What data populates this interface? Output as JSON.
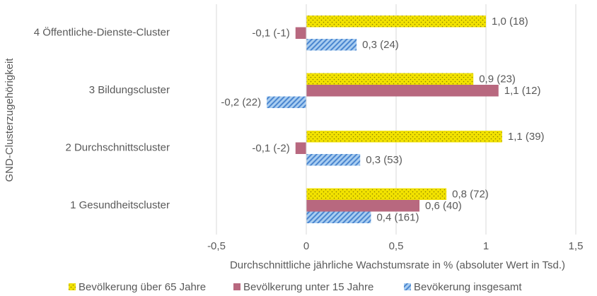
{
  "chart_data": {
    "type": "hbar",
    "x_label": "Durchschnittliche jährliche Wachstumsrate in % (absoluter Wert in Tsd.)",
    "y_label": "GND-Clusterzugehörigkeit",
    "categories": [
      "4 Öffentliche-Dienste-Cluster",
      "3 Bildungscluster",
      "2 Durchschnittscluster",
      "1 Gesundheitscluster"
    ],
    "series": [
      {
        "name": "Bevölkerung über 65 Jahre",
        "color": "#f2e200",
        "pattern": "dotted",
        "values": [
          1.0,
          0.93,
          1.09,
          0.78
        ],
        "value_labels": [
          "1,0 (18)",
          "0,9 (23)",
          "1,1 (39)",
          "0,8 (72)"
        ]
      },
      {
        "name": "Bevölkerung unter 15 Jahre",
        "color": "#b8687f",
        "pattern": "solid",
        "values": [
          -0.06,
          1.07,
          -0.06,
          0.63
        ],
        "value_labels": [
          "-0,1 (-1)",
          "1,1 (12)",
          "-0,1 (-2)",
          "0,6 (40)"
        ]
      },
      {
        "name": "Bevökerung insgesamt",
        "color": "#4a86d0",
        "pattern": "hatched",
        "values": [
          0.28,
          -0.22,
          0.3,
          0.36
        ],
        "value_labels": [
          "0,3 (24)",
          "-0,2 (22)",
          "0,3 (53)",
          "0,4 (161)"
        ]
      }
    ],
    "xlim": [
      -0.5,
      1.5
    ],
    "xticks": [
      {
        "value": -0.5,
        "label": "-0,5"
      },
      0,
      {
        "value": 0.5,
        "label": "0,5"
      },
      1,
      {
        "value": 1.5,
        "label": "1,5"
      }
    ],
    "grid": true,
    "legend": "bottom"
  }
}
